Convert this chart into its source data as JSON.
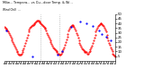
{
  "bg_color": "#ffffff",
  "temp_color": "#ff0000",
  "wind_color": "#0000ff",
  "ylim": [
    0,
    50
  ],
  "yticks": [
    5,
    10,
    15,
    20,
    25,
    30,
    35,
    40,
    45,
    50
  ],
  "grid_color": "#999999",
  "vline_x": [
    0.33,
    0.5
  ],
  "title1": "Milw... Tempera... vs Ou...door Temp. & Wi...",
  "title2": "Wind Chill  ...",
  "temp_data": [
    36,
    35,
    34,
    33,
    32,
    31,
    30,
    28,
    26,
    24,
    22,
    20,
    18,
    16,
    14,
    12,
    10,
    9,
    8,
    7,
    7,
    7,
    8,
    9,
    11,
    13,
    16,
    19,
    22,
    25,
    28,
    31,
    33,
    35,
    36,
    37,
    38,
    38,
    39,
    40,
    41,
    42,
    43,
    43,
    43,
    42,
    41,
    40,
    39,
    38,
    37,
    36,
    35,
    34,
    32,
    30,
    28,
    26,
    24,
    22,
    20,
    18,
    16,
    14,
    13,
    12,
    11,
    10,
    9,
    8,
    8,
    7,
    7,
    8,
    9,
    10,
    12,
    14,
    17,
    20,
    23,
    26,
    29,
    32,
    34,
    36,
    37,
    38,
    38,
    37,
    36,
    34,
    32,
    30,
    28,
    25,
    22,
    19,
    17,
    15,
    13,
    12,
    11,
    10,
    9,
    9,
    9,
    8,
    8,
    9,
    10,
    12,
    14,
    16,
    19,
    22,
    25,
    28,
    31,
    33,
    35,
    37,
    38,
    39,
    40,
    40,
    39,
    38,
    37,
    35,
    33,
    31,
    28,
    25,
    22,
    19,
    17,
    14,
    12,
    10,
    8,
    7,
    6,
    5
  ],
  "wind_data_x": [
    0.02,
    0.25,
    0.48,
    0.52,
    0.6,
    0.68,
    0.74,
    0.8,
    0.85,
    0.88,
    0.92,
    0.96
  ],
  "wind_data_y": [
    32,
    5,
    7,
    10,
    36,
    42,
    40,
    37,
    32,
    29,
    26,
    22
  ],
  "n_xticks": 48,
  "marker_size": 1.0
}
